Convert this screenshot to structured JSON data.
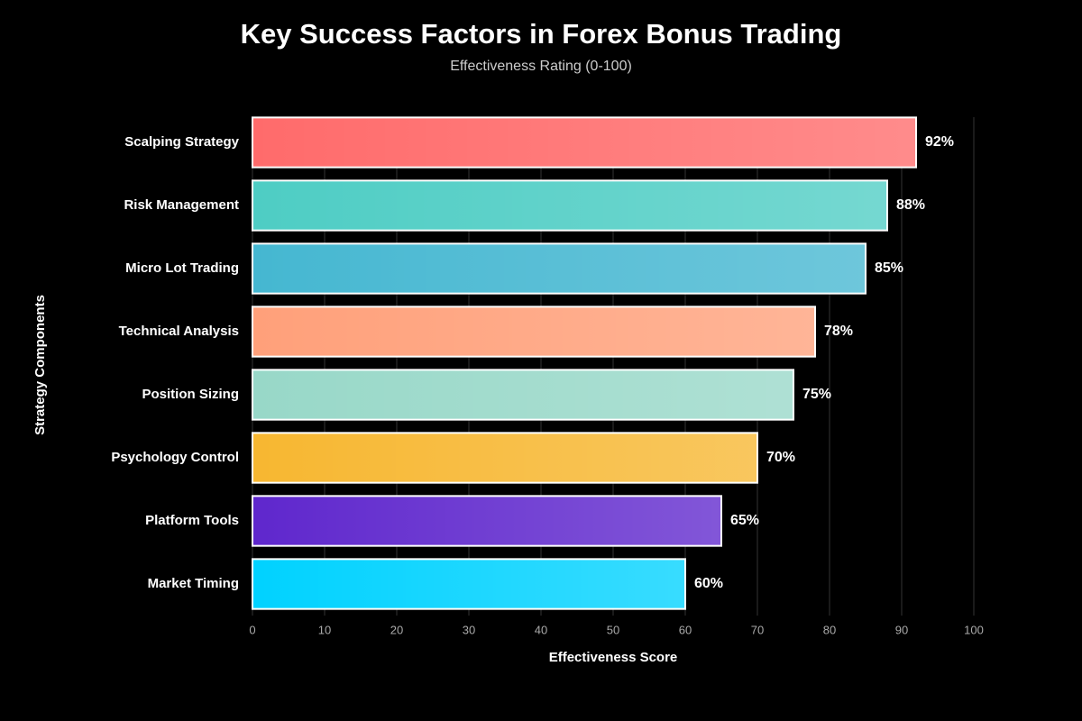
{
  "chart_data": {
    "type": "hbar",
    "title": "Key Success Factors in Forex Bonus Trading",
    "subtitle": "Effectiveness Rating (0-100)",
    "x_label": "Effectiveness Score",
    "y_label": "Strategy Components",
    "categories": [
      "Scalping Strategy",
      "Risk Management",
      "Micro Lot Trading",
      "Technical Analysis",
      "Position Sizing",
      "Psychology Control",
      "Platform Tools",
      "Market Timing"
    ],
    "values": [
      92,
      88,
      85,
      78,
      75,
      70,
      65,
      60
    ],
    "value_labels": [
      "92%",
      "88%",
      "85%",
      "78%",
      "75%",
      "70%",
      "65%",
      "60%"
    ],
    "colors": [
      "#FF6B6B",
      "#4ECDC4",
      "#45B7D1",
      "#FFA07A",
      "#98D8C8",
      "#F7B731",
      "#5F27CD",
      "#00D2FF"
    ],
    "xlim": [
      0,
      100
    ],
    "xticks": [
      0,
      10,
      20,
      30,
      40,
      50,
      60,
      70,
      80,
      90,
      100
    ],
    "grid": true
  }
}
